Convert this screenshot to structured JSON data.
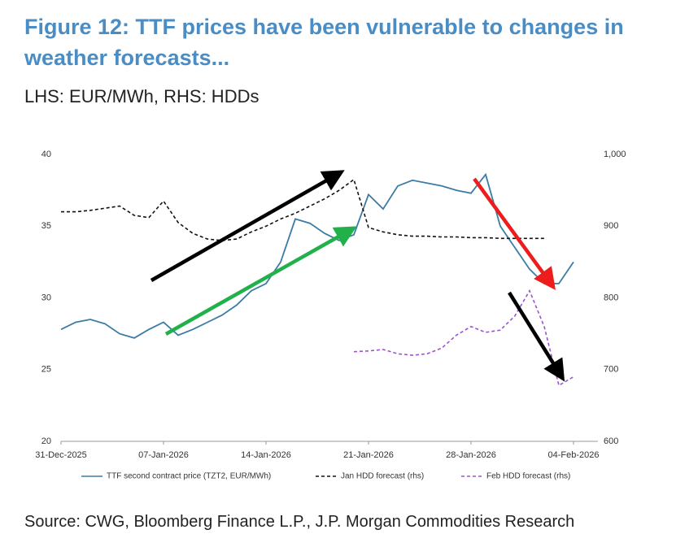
{
  "chart_data": {
    "type": "line",
    "title": "Figure 12: TTF prices have been vulnerable to changes in weather forecasts...",
    "subtitle": "LHS: EUR/MWh, RHS: HDDs",
    "source": "Source: CWG, Bloomberg Finance L.P., J.P. Morgan Commodities Research",
    "x": [
      "2025-12-31",
      "2026-01-01",
      "2026-01-02",
      "2026-01-03",
      "2026-01-04",
      "2026-01-05",
      "2026-01-06",
      "2026-01-07",
      "2026-01-08",
      "2026-01-09",
      "2026-01-10",
      "2026-01-11",
      "2026-01-12",
      "2026-01-13",
      "2026-01-14",
      "2026-01-15",
      "2026-01-16",
      "2026-01-17",
      "2026-01-18",
      "2026-01-19",
      "2026-01-20",
      "2026-01-21",
      "2026-01-22",
      "2026-01-23",
      "2026-01-24",
      "2026-01-25",
      "2026-01-26",
      "2026-01-27",
      "2026-01-28",
      "2026-01-29",
      "2026-01-30",
      "2026-01-31",
      "2026-02-01",
      "2026-02-02",
      "2026-02-03",
      "2026-02-04"
    ],
    "xlim": [
      "2025-12-31",
      "2026-02-06"
    ],
    "xticks": [
      {
        "value": "2025-12-31",
        "label": "31-Dec-2025"
      },
      {
        "value": "2026-01-07",
        "label": "07-Jan-2026"
      },
      {
        "value": "2026-01-14",
        "label": "14-Jan-2026"
      },
      {
        "value": "2026-01-21",
        "label": "21-Jan-2026"
      },
      {
        "value": "2026-01-28",
        "label": "28-Jan-2026"
      },
      {
        "value": "2026-02-04",
        "label": "04-Feb-2026"
      }
    ],
    "ylim": [
      20,
      40
    ],
    "yticks": [
      20,
      25,
      30,
      35,
      40
    ],
    "y2lim": [
      600,
      1000
    ],
    "y2ticks": [
      600,
      700,
      800,
      900,
      {
        "value": 1000,
        "label": "1,000"
      }
    ],
    "series": [
      {
        "name": "TTF second contract price (TZT2, EUR/MWh)",
        "color": "#3a7ca5",
        "dash": false,
        "values": [
          27.8,
          28.3,
          28.5,
          28.2,
          27.5,
          27.2,
          27.8,
          28.3,
          27.4,
          27.8,
          28.3,
          28.8,
          29.5,
          30.5,
          31.0,
          32.5,
          35.5,
          35.2,
          34.5,
          34.0,
          34.4,
          37.2,
          36.2,
          37.8,
          38.2,
          38.0,
          37.8,
          37.5,
          37.3,
          38.6,
          35.0,
          33.5,
          32.0,
          31.0,
          31.0,
          32.5
        ]
      },
      {
        "name": "Jan HDD forecast (rhs)",
        "color": "#111111",
        "dash": true,
        "axis": "y2",
        "values": [
          920,
          920,
          922,
          925,
          928,
          915,
          912,
          935,
          905,
          890,
          882,
          880,
          882,
          892,
          900,
          910,
          918,
          928,
          938,
          950,
          965,
          898,
          892,
          888,
          886,
          886,
          885,
          885,
          884,
          884,
          883,
          883,
          883,
          883,
          null,
          null
        ]
      },
      {
        "name": "Feb HDD forecast (rhs)",
        "color": "#9b55c8",
        "dash": true,
        "axis": "y2",
        "values": [
          null,
          null,
          null,
          null,
          null,
          null,
          null,
          null,
          null,
          null,
          null,
          null,
          null,
          null,
          null,
          null,
          null,
          null,
          null,
          null,
          725,
          726,
          728,
          722,
          720,
          722,
          730,
          748,
          760,
          752,
          755,
          775,
          810,
          760,
          678,
          690
        ]
      }
    ]
  }
}
